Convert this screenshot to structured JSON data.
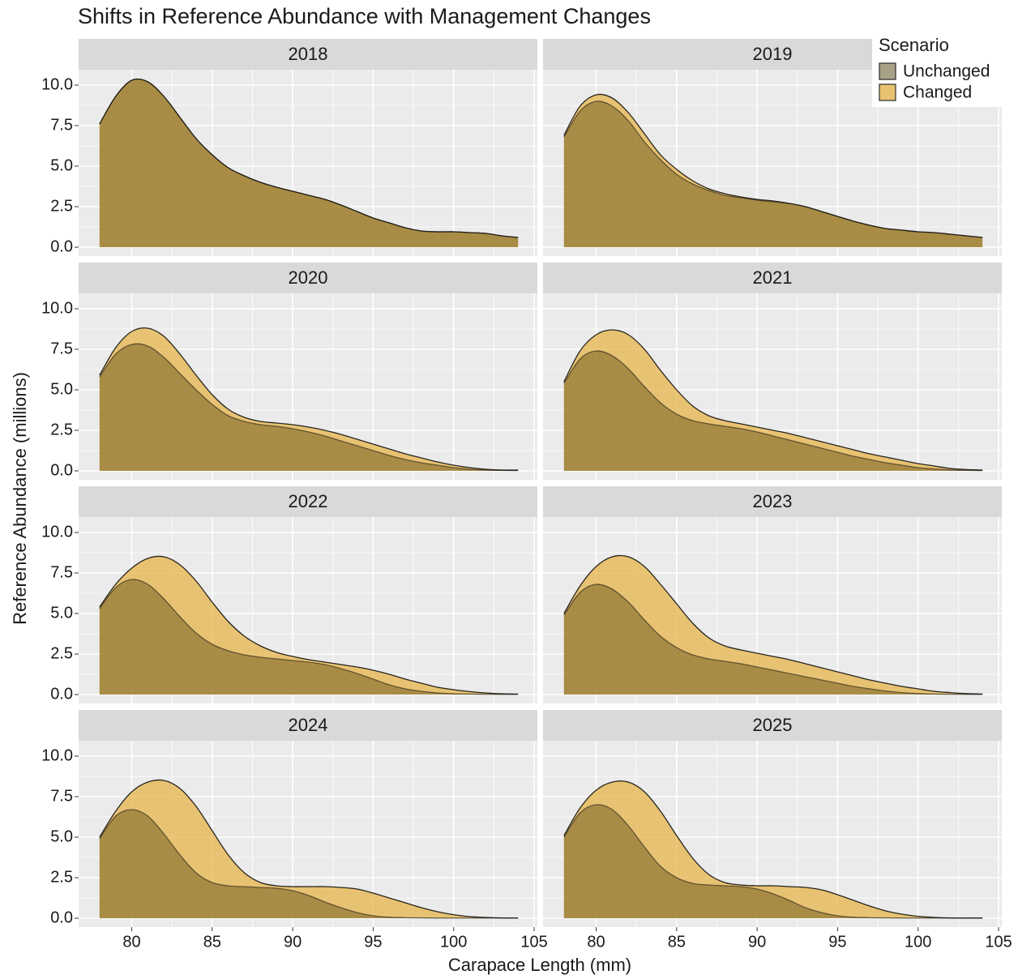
{
  "title": "Shifts in Reference Abundance with Management Changes",
  "x_label": "Carapace Length (mm)",
  "y_label": "Reference Abundance (millions)",
  "legend_title": "Scenario",
  "chart_data": [
    {
      "type": "area",
      "title": "2018",
      "x": [
        78,
        79,
        80,
        81,
        82,
        83,
        84,
        85,
        86,
        87,
        88,
        89,
        90,
        91,
        92,
        93,
        94,
        95,
        96,
        97,
        98,
        99,
        100,
        101,
        102,
        103,
        104
      ],
      "series": [
        {
          "name": "Changed",
          "color": "#e6b44a",
          "values": [
            7.6,
            9.3,
            10.3,
            10.2,
            9.3,
            8.0,
            6.7,
            5.7,
            4.9,
            4.4,
            4.0,
            3.7,
            3.45,
            3.2,
            2.95,
            2.6,
            2.2,
            1.8,
            1.5,
            1.2,
            1.0,
            0.95,
            0.95,
            0.9,
            0.85,
            0.7,
            0.6
          ]
        },
        {
          "name": "Unchanged",
          "color": "#5a4a10",
          "values": [
            7.6,
            9.3,
            10.3,
            10.2,
            9.3,
            8.0,
            6.7,
            5.7,
            4.9,
            4.4,
            4.0,
            3.7,
            3.45,
            3.2,
            2.95,
            2.6,
            2.2,
            1.8,
            1.5,
            1.2,
            1.0,
            0.95,
            0.95,
            0.9,
            0.85,
            0.7,
            0.6
          ]
        }
      ],
      "xlim": [
        76.7,
        105.2
      ],
      "ylim": [
        -0.55,
        10.95
      ],
      "xticks": [
        80,
        85,
        90,
        95,
        100,
        105
      ],
      "yticks": [
        {
          "value": 0,
          "label": "0.0"
        },
        2.5,
        {
          "value": 5,
          "label": "5.0"
        },
        7.5,
        {
          "value": 10,
          "label": "10.0"
        }
      ]
    },
    {
      "type": "area",
      "title": "2019",
      "x": [
        78,
        79,
        80,
        81,
        82,
        83,
        84,
        85,
        86,
        87,
        88,
        89,
        90,
        91,
        92,
        93,
        94,
        95,
        96,
        97,
        98,
        99,
        100,
        101,
        102,
        103,
        104
      ],
      "series": [
        {
          "name": "Changed",
          "color": "#e6b44a",
          "values": [
            6.9,
            8.7,
            9.4,
            9.2,
            8.3,
            7.0,
            5.7,
            4.8,
            4.1,
            3.6,
            3.3,
            3.1,
            2.95,
            2.85,
            2.7,
            2.5,
            2.2,
            1.9,
            1.6,
            1.35,
            1.15,
            1.05,
            0.95,
            0.9,
            0.8,
            0.7,
            0.6
          ]
        },
        {
          "name": "Unchanged",
          "color": "#5a4a10",
          "values": [
            6.8,
            8.4,
            9.0,
            8.7,
            7.8,
            6.5,
            5.4,
            4.5,
            3.9,
            3.5,
            3.2,
            3.05,
            2.9,
            2.8,
            2.7,
            2.5,
            2.2,
            1.9,
            1.6,
            1.35,
            1.15,
            1.05,
            0.95,
            0.9,
            0.8,
            0.7,
            0.6
          ]
        }
      ],
      "xlim": [
        76.7,
        105.2
      ],
      "ylim": [
        -0.55,
        10.95
      ],
      "xticks": [
        80,
        85,
        90,
        95,
        100,
        105
      ],
      "yticks": [
        {
          "value": 0,
          "label": "0.0"
        },
        2.5,
        {
          "value": 5,
          "label": "5.0"
        },
        7.5,
        {
          "value": 10,
          "label": "10.0"
        }
      ]
    },
    {
      "type": "area",
      "title": "2020",
      "x": [
        78,
        79,
        80,
        81,
        82,
        83,
        84,
        85,
        86,
        87,
        88,
        89,
        90,
        91,
        92,
        93,
        94,
        95,
        96,
        97,
        98,
        99,
        100,
        101,
        102,
        103,
        104
      ],
      "series": [
        {
          "name": "Changed",
          "color": "#e6b44a",
          "values": [
            5.9,
            7.6,
            8.6,
            8.8,
            8.3,
            7.2,
            5.9,
            4.7,
            3.8,
            3.3,
            3.05,
            2.95,
            2.85,
            2.7,
            2.5,
            2.25,
            1.95,
            1.65,
            1.35,
            1.05,
            0.8,
            0.55,
            0.35,
            0.2,
            0.1,
            0.05,
            0.05
          ]
        },
        {
          "name": "Unchanged",
          "color": "#5a4a10",
          "values": [
            5.8,
            7.2,
            7.8,
            7.7,
            7.0,
            6.0,
            5.0,
            4.1,
            3.4,
            3.05,
            2.85,
            2.75,
            2.6,
            2.4,
            2.15,
            1.85,
            1.55,
            1.25,
            0.95,
            0.7,
            0.5,
            0.35,
            0.2,
            0.1,
            0.05,
            0.03,
            0.02
          ]
        }
      ],
      "xlim": [
        76.7,
        105.2
      ],
      "ylim": [
        -0.55,
        10.95
      ],
      "xticks": [
        80,
        85,
        90,
        95,
        100,
        105
      ],
      "yticks": [
        {
          "value": 0,
          "label": "0.0"
        },
        2.5,
        {
          "value": 5,
          "label": "5.0"
        },
        7.5,
        {
          "value": 10,
          "label": "10.0"
        }
      ]
    },
    {
      "type": "area",
      "title": "2021",
      "x": [
        78,
        79,
        80,
        81,
        82,
        83,
        84,
        85,
        86,
        87,
        88,
        89,
        90,
        91,
        92,
        93,
        94,
        95,
        96,
        97,
        98,
        99,
        100,
        101,
        102,
        103,
        104
      ],
      "series": [
        {
          "name": "Changed",
          "color": "#e6b44a",
          "values": [
            5.5,
            7.4,
            8.4,
            8.7,
            8.4,
            7.5,
            6.2,
            5.0,
            4.0,
            3.4,
            3.1,
            2.9,
            2.7,
            2.5,
            2.3,
            2.05,
            1.8,
            1.55,
            1.3,
            1.05,
            0.85,
            0.65,
            0.45,
            0.3,
            0.15,
            0.08,
            0.05
          ]
        },
        {
          "name": "Unchanged",
          "color": "#5a4a10",
          "values": [
            5.4,
            6.9,
            7.4,
            7.1,
            6.3,
            5.2,
            4.2,
            3.5,
            3.1,
            2.9,
            2.75,
            2.6,
            2.4,
            2.15,
            1.9,
            1.65,
            1.4,
            1.15,
            0.9,
            0.7,
            0.5,
            0.35,
            0.2,
            0.12,
            0.06,
            0.03,
            0.02
          ]
        }
      ],
      "xlim": [
        76.7,
        105.2
      ],
      "ylim": [
        -0.55,
        10.95
      ],
      "xticks": [
        80,
        85,
        90,
        95,
        100,
        105
      ],
      "yticks": [
        {
          "value": 0,
          "label": "0.0"
        },
        2.5,
        {
          "value": 5,
          "label": "5.0"
        },
        7.5,
        {
          "value": 10,
          "label": "10.0"
        }
      ]
    },
    {
      "type": "area",
      "title": "2022",
      "x": [
        78,
        79,
        80,
        81,
        82,
        83,
        84,
        85,
        86,
        87,
        88,
        89,
        90,
        91,
        92,
        93,
        94,
        95,
        96,
        97,
        98,
        99,
        100,
        101,
        102,
        103,
        104
      ],
      "series": [
        {
          "name": "Changed",
          "color": "#e6b44a",
          "values": [
            5.4,
            6.8,
            7.8,
            8.4,
            8.5,
            8.0,
            7.0,
            5.7,
            4.5,
            3.6,
            3.0,
            2.6,
            2.35,
            2.15,
            2.0,
            1.85,
            1.7,
            1.5,
            1.25,
            0.95,
            0.7,
            0.45,
            0.3,
            0.18,
            0.1,
            0.05,
            0.03
          ]
        },
        {
          "name": "Unchanged",
          "color": "#5a4a10",
          "values": [
            5.3,
            6.6,
            7.1,
            6.8,
            5.9,
            4.8,
            3.8,
            3.1,
            2.7,
            2.45,
            2.3,
            2.2,
            2.1,
            2.0,
            1.85,
            1.6,
            1.3,
            0.95,
            0.6,
            0.35,
            0.2,
            0.1,
            0.05,
            0.03,
            0.02,
            0.01,
            0.01
          ]
        }
      ],
      "xlim": [
        76.7,
        105.2
      ],
      "ylim": [
        -0.55,
        10.95
      ],
      "xticks": [
        80,
        85,
        90,
        95,
        100,
        105
      ],
      "yticks": [
        {
          "value": 0,
          "label": "0.0"
        },
        2.5,
        {
          "value": 5,
          "label": "5.0"
        },
        7.5,
        {
          "value": 10,
          "label": "10.0"
        }
      ]
    },
    {
      "type": "area",
      "title": "2023",
      "x": [
        78,
        79,
        80,
        81,
        82,
        83,
        84,
        85,
        86,
        87,
        88,
        89,
        90,
        91,
        92,
        93,
        94,
        95,
        96,
        97,
        98,
        99,
        100,
        101,
        102,
        103,
        104
      ],
      "series": [
        {
          "name": "Changed",
          "color": "#e6b44a",
          "values": [
            5.0,
            6.7,
            7.9,
            8.5,
            8.5,
            7.9,
            6.8,
            5.6,
            4.4,
            3.5,
            3.0,
            2.75,
            2.55,
            2.35,
            2.15,
            1.9,
            1.65,
            1.4,
            1.15,
            0.9,
            0.7,
            0.5,
            0.35,
            0.2,
            0.12,
            0.06,
            0.03
          ]
        },
        {
          "name": "Unchanged",
          "color": "#5a4a10",
          "values": [
            4.9,
            6.3,
            6.8,
            6.5,
            5.7,
            4.6,
            3.6,
            2.9,
            2.45,
            2.2,
            2.05,
            1.9,
            1.7,
            1.5,
            1.3,
            1.1,
            0.9,
            0.7,
            0.5,
            0.35,
            0.22,
            0.12,
            0.06,
            0.03,
            0.02,
            0.01,
            0.01
          ]
        }
      ],
      "xlim": [
        76.7,
        105.2
      ],
      "ylim": [
        -0.55,
        10.95
      ],
      "xticks": [
        80,
        85,
        90,
        95,
        100,
        105
      ],
      "yticks": [
        {
          "value": 0,
          "label": "0.0"
        },
        2.5,
        {
          "value": 5,
          "label": "5.0"
        },
        7.5,
        {
          "value": 10,
          "label": "10.0"
        }
      ]
    },
    {
      "type": "area",
      "title": "2024",
      "x": [
        78,
        79,
        80,
        81,
        82,
        83,
        84,
        85,
        86,
        87,
        88,
        89,
        90,
        91,
        92,
        93,
        94,
        95,
        96,
        97,
        98,
        99,
        100,
        101,
        102,
        103,
        104
      ],
      "series": [
        {
          "name": "Changed",
          "color": "#e6b44a",
          "values": [
            5.0,
            6.6,
            7.8,
            8.4,
            8.5,
            8.0,
            6.9,
            5.4,
            3.9,
            2.8,
            2.2,
            2.0,
            1.95,
            1.95,
            1.95,
            1.9,
            1.8,
            1.55,
            1.25,
            0.95,
            0.65,
            0.4,
            0.22,
            0.1,
            0.05,
            0.02,
            0.01
          ]
        },
        {
          "name": "Unchanged",
          "color": "#5a4a10",
          "values": [
            4.9,
            6.3,
            6.7,
            6.3,
            5.2,
            3.9,
            2.8,
            2.2,
            2.0,
            1.95,
            1.9,
            1.85,
            1.7,
            1.4,
            1.0,
            0.65,
            0.35,
            0.15,
            0.06,
            0.03,
            0.02,
            0.01,
            0.01,
            0.01,
            0.01,
            0.01,
            0.01
          ]
        }
      ],
      "xlim": [
        76.7,
        105.2
      ],
      "ylim": [
        -0.55,
        10.95
      ],
      "xticks": [
        80,
        85,
        90,
        95,
        100,
        105
      ],
      "yticks": [
        {
          "value": 0,
          "label": "0.0"
        },
        2.5,
        {
          "value": 5,
          "label": "5.0"
        },
        7.5,
        {
          "value": 10,
          "label": "10.0"
        }
      ]
    },
    {
      "type": "area",
      "title": "2025",
      "x": [
        78,
        79,
        80,
        81,
        82,
        83,
        84,
        85,
        86,
        87,
        88,
        89,
        90,
        91,
        92,
        93,
        94,
        95,
        96,
        97,
        98,
        99,
        100,
        101,
        102,
        103,
        104
      ],
      "series": [
        {
          "name": "Changed",
          "color": "#e6b44a",
          "values": [
            5.1,
            6.8,
            7.9,
            8.4,
            8.4,
            7.8,
            6.6,
            5.1,
            3.7,
            2.7,
            2.2,
            2.05,
            2.0,
            2.0,
            1.95,
            1.9,
            1.75,
            1.45,
            1.1,
            0.75,
            0.45,
            0.25,
            0.12,
            0.05,
            0.02,
            0.01,
            0.01
          ]
        },
        {
          "name": "Unchanged",
          "color": "#5a4a10",
          "values": [
            5.0,
            6.5,
            7.0,
            6.7,
            5.7,
            4.4,
            3.2,
            2.5,
            2.15,
            2.05,
            2.0,
            1.95,
            1.8,
            1.5,
            1.1,
            0.65,
            0.35,
            0.15,
            0.06,
            0.03,
            0.02,
            0.01,
            0.01,
            0.01,
            0.01,
            0.01,
            0.01
          ]
        }
      ],
      "xlim": [
        76.7,
        105.2
      ],
      "ylim": [
        -0.55,
        10.95
      ],
      "xticks": [
        80,
        85,
        90,
        95,
        100,
        105
      ],
      "yticks": [
        {
          "value": 0,
          "label": "0.0"
        },
        2.5,
        {
          "value": 5,
          "label": "5.0"
        },
        7.5,
        {
          "value": 10,
          "label": "10.0"
        }
      ]
    }
  ]
}
